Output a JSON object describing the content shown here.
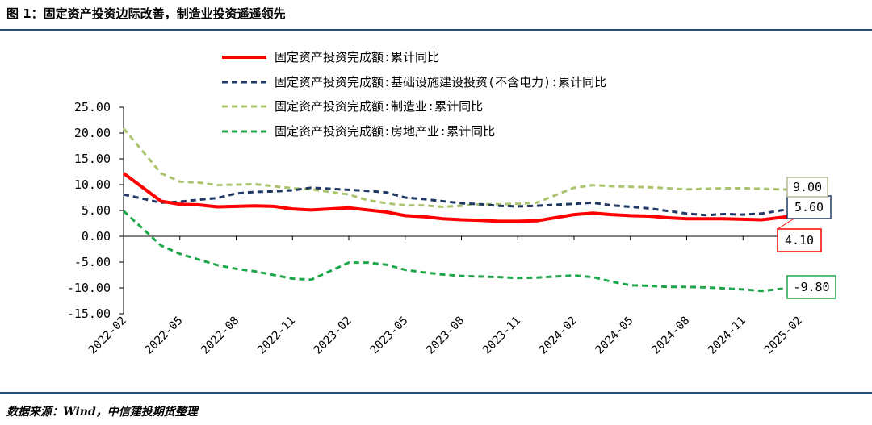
{
  "header": {
    "title": "图 1：固定资产投资边际改善，制造业投资遥遥领先"
  },
  "footer": {
    "source": "数据来源：Wind，中信建投期货整理"
  },
  "colors": {
    "rule": "#1f4e79"
  },
  "chart_data": {
    "type": "line",
    "title": "",
    "xlabel": "",
    "ylabel": "",
    "ylim": [
      -15,
      25
    ],
    "yticks": [
      "25.00",
      "20.00",
      "15.00",
      "10.00",
      "5.00",
      "0.00",
      "-5.00",
      "-10.00",
      "-15.00"
    ],
    "ytick_values": [
      25,
      20,
      15,
      10,
      5,
      0,
      -5,
      -10,
      -15
    ],
    "x": [
      "2022-02",
      "2022-03",
      "2022-04",
      "2022-05",
      "2022-06",
      "2022-07",
      "2022-08",
      "2022-09",
      "2022-10",
      "2022-11",
      "2022-12",
      "2023-01",
      "2023-02",
      "2023-03",
      "2023-04",
      "2023-05",
      "2023-06",
      "2023-07",
      "2023-08",
      "2023-09",
      "2023-10",
      "2023-11",
      "2023-12",
      "2024-01",
      "2024-02",
      "2024-03",
      "2024-04",
      "2024-05",
      "2024-06",
      "2024-07",
      "2024-08",
      "2024-09",
      "2024-10",
      "2024-11",
      "2024-12",
      "2025-01",
      "2025-02"
    ],
    "xticks": [
      "2022-02",
      "2022-05",
      "2022-08",
      "2022-11",
      "2023-02",
      "2023-05",
      "2023-08",
      "2023-11",
      "2024-02",
      "2024-05",
      "2024-08",
      "2024-11",
      "2025-02"
    ],
    "legend_position": "top",
    "grid": false,
    "series": [
      {
        "name": "固定资产投资完成额:累计同比",
        "color": "#ff0000",
        "style": "solid",
        "width": 4,
        "end_label": "4.10",
        "values": [
          12.2,
          null,
          6.8,
          6.2,
          6.1,
          5.7,
          5.8,
          5.9,
          5.8,
          5.3,
          5.1,
          null,
          5.5,
          5.1,
          4.7,
          4.0,
          3.8,
          3.4,
          3.2,
          3.1,
          2.9,
          2.9,
          3.0,
          null,
          4.2,
          4.5,
          4.2,
          4.0,
          3.9,
          3.6,
          3.4,
          3.4,
          3.4,
          3.3,
          3.2,
          null,
          4.1
        ]
      },
      {
        "name": "固定资产投资完成额:基础设施建设投资(不含电力):累计同比",
        "color": "#1f3864",
        "style": "dashed",
        "width": 3,
        "end_label": "5.60",
        "values": [
          8.1,
          null,
          6.5,
          6.7,
          7.1,
          7.4,
          8.3,
          8.6,
          8.7,
          8.9,
          9.4,
          null,
          9.0,
          8.8,
          8.5,
          7.5,
          7.2,
          6.8,
          6.4,
          6.2,
          5.9,
          5.8,
          5.9,
          null,
          6.3,
          6.5,
          6.0,
          5.7,
          5.4,
          4.9,
          4.4,
          4.1,
          4.3,
          4.2,
          4.4,
          null,
          5.6
        ]
      },
      {
        "name": "固定资产投资完成额:制造业:累计同比",
        "color": "#a9c46c",
        "style": "dashed",
        "width": 3,
        "end_label": "9.00",
        "values": [
          20.9,
          null,
          12.2,
          10.6,
          10.4,
          9.9,
          10.0,
          10.1,
          9.7,
          9.3,
          9.1,
          null,
          8.1,
          7.0,
          6.4,
          6.0,
          6.0,
          5.7,
          5.9,
          6.2,
          6.2,
          6.3,
          6.5,
          null,
          9.4,
          9.9,
          9.7,
          9.6,
          9.5,
          9.3,
          9.1,
          9.2,
          9.3,
          9.3,
          9.2,
          null,
          9.0
        ]
      },
      {
        "name": "固定资产投资完成额:房地产业:累计同比",
        "color": "#1ea64a",
        "style": "dashed",
        "width": 3,
        "end_label": "-9.80",
        "values": [
          4.9,
          null,
          -1.8,
          -3.4,
          -4.5,
          -5.6,
          -6.3,
          -6.8,
          -7.5,
          -8.2,
          -8.4,
          null,
          -5.1,
          -5.1,
          -5.5,
          -6.5,
          -7.0,
          -7.4,
          -7.7,
          -7.8,
          -7.9,
          -8.1,
          -8.0,
          null,
          -7.6,
          -7.9,
          -8.8,
          -9.5,
          -9.6,
          -9.8,
          -9.8,
          -9.9,
          -10.1,
          -10.3,
          -10.6,
          null,
          -9.8
        ]
      }
    ]
  }
}
